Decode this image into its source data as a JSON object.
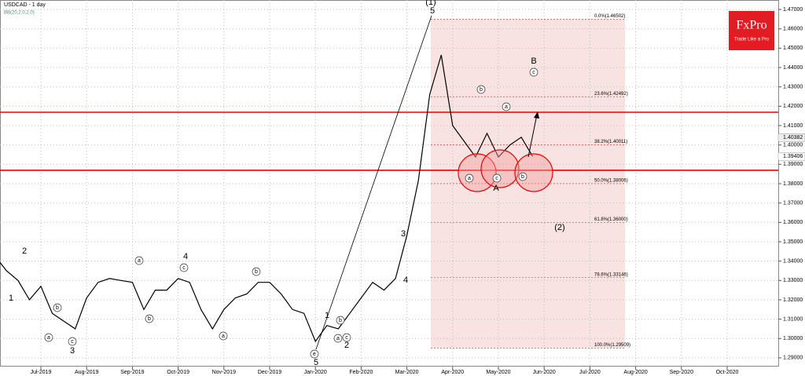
{
  "chart_data": {
    "type": "line",
    "title": "USDCAD - 1 day",
    "subtitle": "BB(20,2.0,2.0)",
    "brand": {
      "name": "FxPro",
      "tagline": "Trade Like a Pro"
    },
    "categories": [
      null,
      null,
      null,
      null,
      "Jul-2019",
      null,
      null,
      null,
      "Aug-2019",
      null,
      null,
      null,
      "Sep-2019",
      null,
      null,
      null,
      "Oct-2019",
      null,
      null,
      null,
      "Nov-2019",
      null,
      null,
      null,
      "Dec-2019",
      null,
      null,
      null,
      "Jan-2020",
      null,
      null,
      null,
      "Feb-2020",
      null,
      null,
      null,
      "Mar-2020",
      null,
      null,
      null,
      "Apr-2020",
      null,
      null,
      null,
      "May-2020",
      null,
      null,
      null,
      "Jun-2020",
      null,
      null,
      null,
      "Jul-2020",
      null,
      null,
      null,
      "Aug-2020",
      null,
      null,
      null,
      "Sep-2020",
      null,
      null,
      null,
      "Oct-2020",
      null,
      null,
      null
    ],
    "series": [
      {
        "name": "USDCAD",
        "color": "#000000",
        "values": [
          1.3425,
          1.335,
          1.33,
          1.32,
          1.327,
          1.313,
          1.309,
          1.305,
          1.321,
          1.329,
          1.331,
          1.33,
          1.329,
          1.315,
          1.325,
          1.325,
          1.331,
          1.329,
          1.315,
          1.305,
          1.315,
          1.321,
          1.323,
          1.329,
          1.329,
          1.323,
          1.315,
          1.313,
          1.2985,
          1.3067,
          1.305,
          1.313,
          1.321,
          1.329,
          1.325,
          1.331,
          1.3533,
          1.3816,
          1.4262,
          1.4465,
          1.41,
          1.4019,
          1.3938,
          1.406,
          1.3938,
          1.4,
          1.404,
          1.39406,
          null,
          null,
          null,
          null,
          null,
          null,
          null,
          null,
          null,
          null,
          null,
          null,
          null,
          null,
          null,
          null,
          null,
          null,
          null,
          null
        ]
      }
    ],
    "ylim": [
      1.2855,
      1.4749
    ],
    "yticks": [
      {
        "value": 1.29,
        "label": "1.29000"
      },
      {
        "value": 1.3,
        "label": "1.30000"
      },
      {
        "value": 1.31,
        "label": "1.31000"
      },
      {
        "value": 1.32,
        "label": "1.32000"
      },
      {
        "value": 1.33,
        "label": "1.33000"
      },
      {
        "value": 1.34,
        "label": "1.34000"
      },
      {
        "value": 1.35,
        "label": "1.35000"
      },
      {
        "value": 1.36,
        "label": "1.36000"
      },
      {
        "value": 1.37,
        "label": "1.37000"
      },
      {
        "value": 1.38,
        "label": "1.38000"
      },
      {
        "value": 1.39,
        "label": "1.39000"
      },
      {
        "value": 1.4,
        "label": "1.40000"
      },
      {
        "value": 1.41,
        "label": "1.41000"
      },
      {
        "value": 1.42,
        "label": "1.42000"
      },
      {
        "value": 1.43,
        "label": "1.43000"
      },
      {
        "value": 1.44,
        "label": "1.44000"
      },
      {
        "value": 1.45,
        "label": "1.45000"
      },
      {
        "value": 1.46,
        "label": "1.46000"
      },
      {
        "value": 1.47,
        "label": "1.47000"
      }
    ],
    "grid": true,
    "fib_levels": [
      {
        "value": 1.46502,
        "label": "0.0%(1.46502)"
      },
      {
        "value": 1.42492,
        "label": "23.6%(1.42492)"
      },
      {
        "value": 1.40011,
        "label": "38.2%(1.40011)"
      },
      {
        "value": 1.38006,
        "label": "50.0%(1.38006)"
      },
      {
        "value": 1.36,
        "label": "61.8%(1.36000)"
      },
      {
        "value": 1.33146,
        "label": "78.6%(1.33146)"
      },
      {
        "value": 1.29509,
        "label": "100.0%(1.29509)"
      }
    ],
    "levels": [
      1.4169,
      1.3869
    ],
    "price_marks": [
      {
        "value": 1.40382,
        "label": "1.40382"
      },
      {
        "value": 1.39406,
        "label": "1.39406"
      }
    ],
    "annotations": [
      "(1)",
      "5",
      "B",
      "(2)",
      "A",
      "3",
      "4",
      "5",
      "1",
      "2",
      "3",
      "4",
      "1",
      "2"
    ],
    "wave_letters": [
      "a",
      "c",
      "b",
      "b",
      "a",
      "c",
      "a",
      "c",
      "b",
      "a",
      "b",
      "c",
      "a",
      "b",
      "e",
      "a",
      "c",
      "b"
    ]
  }
}
